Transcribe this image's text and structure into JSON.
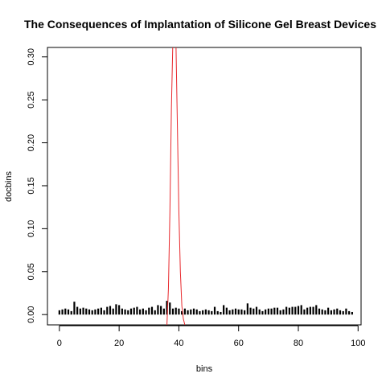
{
  "chart_data": {
    "type": "bar",
    "title": "The Consequences of Implantation of Silicone Gel Breast Devices",
    "xlabel": "bins",
    "ylabel": "docbins",
    "xlim": [
      -4,
      101
    ],
    "ylim": [
      -0.012,
      0.311
    ],
    "xticks": [
      0,
      20,
      40,
      60,
      80,
      100
    ],
    "yticks": [
      0.0,
      0.05,
      0.1,
      0.15,
      0.2,
      0.25,
      0.3
    ],
    "xtick_labels": [
      "0",
      "20",
      "40",
      "60",
      "80",
      "100"
    ],
    "ytick_labels": [
      "0.00",
      "0.05",
      "0.10",
      "0.15",
      "0.20",
      "0.25",
      "0.30"
    ],
    "bars": {
      "color": "#000000",
      "x": [
        0,
        1,
        2,
        3,
        4,
        5,
        6,
        7,
        8,
        9,
        10,
        11,
        12,
        13,
        14,
        15,
        16,
        17,
        18,
        19,
        20,
        21,
        22,
        23,
        24,
        25,
        26,
        27,
        28,
        29,
        30,
        31,
        32,
        33,
        34,
        35,
        36,
        37,
        38,
        39,
        40,
        41,
        42,
        43,
        44,
        45,
        46,
        47,
        48,
        49,
        50,
        51,
        52,
        53,
        54,
        55,
        56,
        57,
        58,
        59,
        60,
        61,
        62,
        63,
        64,
        65,
        66,
        67,
        68,
        69,
        70,
        71,
        72,
        73,
        74,
        75,
        76,
        77,
        78,
        79,
        80,
        81,
        82,
        83,
        84,
        85,
        86,
        87,
        88,
        89,
        90,
        91,
        92,
        93,
        94,
        95,
        96,
        97,
        98
      ],
      "values": [
        0.005,
        0.006,
        0.007,
        0.006,
        0.004,
        0.015,
        0.009,
        0.007,
        0.008,
        0.007,
        0.006,
        0.005,
        0.006,
        0.007,
        0.008,
        0.005,
        0.009,
        0.01,
        0.007,
        0.012,
        0.011,
        0.007,
        0.006,
        0.005,
        0.007,
        0.008,
        0.009,
        0.006,
        0.007,
        0.005,
        0.008,
        0.009,
        0.005,
        0.011,
        0.01,
        0.007,
        0.016,
        0.014,
        0.007,
        0.008,
        0.007,
        0.004,
        0.007,
        0.005,
        0.006,
        0.007,
        0.006,
        0.004,
        0.005,
        0.006,
        0.005,
        0.004,
        0.009,
        0.004,
        0.003,
        0.011,
        0.008,
        0.005,
        0.006,
        0.007,
        0.006,
        0.006,
        0.005,
        0.013,
        0.008,
        0.007,
        0.009,
        0.006,
        0.004,
        0.006,
        0.007,
        0.007,
        0.008,
        0.008,
        0.005,
        0.006,
        0.009,
        0.008,
        0.009,
        0.009,
        0.01,
        0.011,
        0.006,
        0.008,
        0.009,
        0.009,
        0.011,
        0.007,
        0.006,
        0.005,
        0.008,
        0.005,
        0.006,
        0.007,
        0.005,
        0.004,
        0.007,
        0.004,
        0.003
      ]
    },
    "curve": {
      "color": "#e8292d",
      "type": "line",
      "x": [
        36.0,
        36.5,
        37.0,
        37.5,
        38.0,
        38.5,
        39.0,
        39.5,
        40.0,
        40.5,
        41.0,
        41.5,
        42.0
      ],
      "y": [
        -0.012,
        0.03,
        0.12,
        0.24,
        0.32,
        0.38,
        0.32,
        0.22,
        0.12,
        0.05,
        0.01,
        -0.005,
        -0.012
      ]
    },
    "grid": false,
    "legend": "none"
  }
}
